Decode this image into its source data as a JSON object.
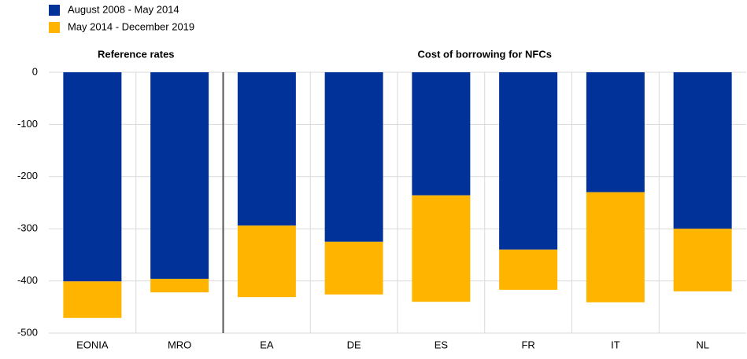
{
  "chart_data": {
    "type": "stacked_bar",
    "groups": [
      "Reference rates",
      "Cost of borrowing for NFCs"
    ],
    "categories": [
      "EONIA",
      "MRO",
      "EA",
      "DE",
      "ES",
      "FR",
      "IT",
      "NL"
    ],
    "series": [
      {
        "name": "August 2008 - May 2014",
        "color": "#003299",
        "values": [
          -401,
          -396,
          -294,
          -325,
          -236,
          -340,
          -230,
          -300
        ]
      },
      {
        "name": "May 2014 - December 2019",
        "color": "#ffb400",
        "values": [
          -70,
          -26,
          -137,
          -101,
          -204,
          -77,
          -211,
          -120
        ]
      }
    ],
    "ylim": [
      -500,
      0
    ],
    "yticks": [
      -500,
      -400,
      -300,
      -200,
      -100,
      0
    ],
    "grid": true
  }
}
